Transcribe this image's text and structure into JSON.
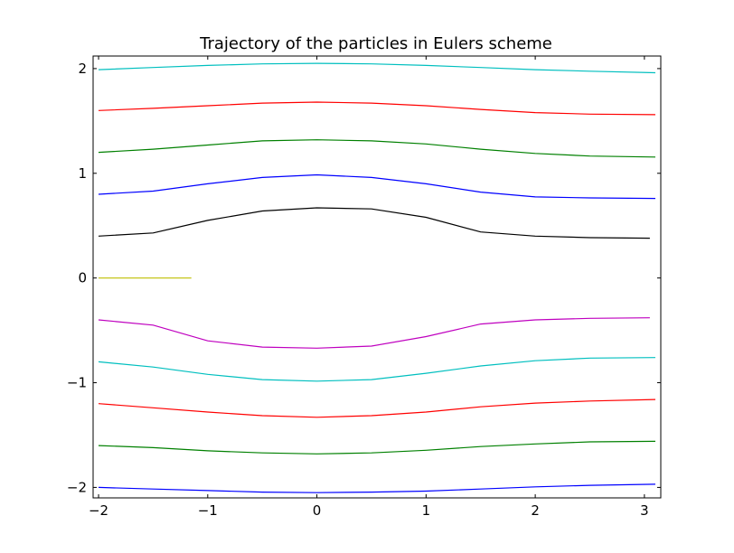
{
  "chart_data": {
    "type": "line",
    "title": "Trajectory of the particles in Eulers scheme",
    "xlabel": "",
    "ylabel": "",
    "xlim": [
      -2.05,
      3.15
    ],
    "ylim": [
      -2.1,
      2.12
    ],
    "grid": false,
    "legend": "none",
    "x_ticks": [
      -2,
      -1,
      0,
      1,
      2,
      3
    ],
    "x_tick_labels": [
      "−2",
      "−1",
      "0",
      "1",
      "2",
      "3"
    ],
    "y_ticks": [
      -2,
      -1,
      0,
      1,
      2
    ],
    "y_tick_labels": [
      "−2",
      "−1",
      "0",
      "1",
      "2"
    ],
    "series": [
      {
        "color": "#00bfbf",
        "x": [
          -2.0,
          -1.5,
          -1.0,
          -0.5,
          0.0,
          0.5,
          1.0,
          1.5,
          2.0,
          2.5,
          3.1
        ],
        "y": [
          1.99,
          2.01,
          2.03,
          2.045,
          2.05,
          2.045,
          2.03,
          2.01,
          1.99,
          1.975,
          1.96
        ]
      },
      {
        "color": "#ff0000",
        "x": [
          -2.0,
          -1.5,
          -1.0,
          -0.5,
          0.0,
          0.5,
          1.0,
          1.5,
          2.0,
          2.5,
          3.1
        ],
        "y": [
          1.6,
          1.62,
          1.645,
          1.67,
          1.68,
          1.67,
          1.645,
          1.61,
          1.58,
          1.565,
          1.56
        ]
      },
      {
        "color": "#008000",
        "x": [
          -2.0,
          -1.5,
          -1.0,
          -0.5,
          0.0,
          0.5,
          1.0,
          1.5,
          2.0,
          2.5,
          3.1
        ],
        "y": [
          1.2,
          1.23,
          1.27,
          1.31,
          1.32,
          1.31,
          1.28,
          1.23,
          1.19,
          1.165,
          1.155
        ]
      },
      {
        "color": "#0000ff",
        "x": [
          -2.0,
          -1.5,
          -1.0,
          -0.5,
          0.0,
          0.5,
          1.0,
          1.5,
          2.0,
          2.5,
          3.1
        ],
        "y": [
          0.8,
          0.83,
          0.9,
          0.96,
          0.985,
          0.96,
          0.9,
          0.82,
          0.775,
          0.765,
          0.76
        ]
      },
      {
        "color": "#000000",
        "x": [
          -2.0,
          -1.5,
          -1.0,
          -0.5,
          0.0,
          0.5,
          1.0,
          1.5,
          2.0,
          2.5,
          3.05
        ],
        "y": [
          0.4,
          0.43,
          0.55,
          0.64,
          0.67,
          0.66,
          0.58,
          0.44,
          0.4,
          0.385,
          0.38
        ]
      },
      {
        "color": "#bfbf00",
        "x": [
          -2.0,
          -1.15
        ],
        "y": [
          0.0,
          0.0
        ]
      },
      {
        "color": "#bf00bf",
        "x": [
          -2.0,
          -1.5,
          -1.0,
          -0.5,
          0.0,
          0.5,
          1.0,
          1.5,
          2.0,
          2.5,
          3.05
        ],
        "y": [
          -0.4,
          -0.45,
          -0.6,
          -0.66,
          -0.67,
          -0.65,
          -0.56,
          -0.44,
          -0.4,
          -0.385,
          -0.38
        ]
      },
      {
        "color": "#00bfbf",
        "x": [
          -2.0,
          -1.5,
          -1.0,
          -0.5,
          0.0,
          0.5,
          1.0,
          1.5,
          2.0,
          2.5,
          3.1
        ],
        "y": [
          -0.8,
          -0.85,
          -0.92,
          -0.97,
          -0.985,
          -0.97,
          -0.91,
          -0.84,
          -0.79,
          -0.765,
          -0.76
        ]
      },
      {
        "color": "#ff0000",
        "x": [
          -2.0,
          -1.5,
          -1.0,
          -0.5,
          0.0,
          0.5,
          1.0,
          1.5,
          2.0,
          2.5,
          3.1
        ],
        "y": [
          -1.2,
          -1.24,
          -1.28,
          -1.315,
          -1.33,
          -1.315,
          -1.28,
          -1.23,
          -1.195,
          -1.175,
          -1.16
        ]
      },
      {
        "color": "#008000",
        "x": [
          -2.0,
          -1.5,
          -1.0,
          -0.5,
          0.0,
          0.5,
          1.0,
          1.5,
          2.0,
          2.5,
          3.1
        ],
        "y": [
          -1.6,
          -1.62,
          -1.65,
          -1.67,
          -1.68,
          -1.67,
          -1.645,
          -1.61,
          -1.585,
          -1.565,
          -1.56
        ]
      },
      {
        "color": "#0000ff",
        "x": [
          -2.0,
          -1.5,
          -1.0,
          -0.5,
          0.0,
          0.5,
          1.0,
          1.5,
          2.0,
          2.5,
          3.1
        ],
        "y": [
          -2.0,
          -2.015,
          -2.03,
          -2.045,
          -2.05,
          -2.045,
          -2.035,
          -2.015,
          -1.995,
          -1.98,
          -1.97
        ]
      }
    ]
  }
}
